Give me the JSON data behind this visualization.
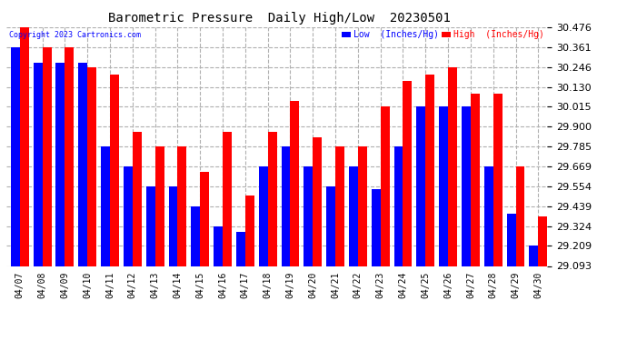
{
  "title": "Barometric Pressure  Daily High/Low  20230501",
  "copyright": "Copyright 2023 Cartronics.com",
  "legend_low": "Low  (Inches/Hg)",
  "legend_high": "High  (Inches/Hg)",
  "dates": [
    "04/07",
    "04/08",
    "04/09",
    "04/10",
    "04/11",
    "04/12",
    "04/13",
    "04/14",
    "04/15",
    "04/16",
    "04/17",
    "04/18",
    "04/19",
    "04/20",
    "04/21",
    "04/22",
    "04/23",
    "04/24",
    "04/25",
    "04/26",
    "04/27",
    "04/28",
    "04/29",
    "04/30"
  ],
  "high": [
    30.476,
    30.361,
    30.361,
    30.246,
    30.2,
    29.87,
    29.785,
    29.785,
    29.64,
    29.87,
    29.5,
    29.87,
    30.05,
    29.84,
    29.785,
    29.785,
    30.015,
    30.165,
    30.2,
    30.246,
    30.09,
    30.09,
    29.67,
    29.38
  ],
  "low": [
    30.361,
    30.27,
    30.27,
    30.27,
    29.785,
    29.669,
    29.554,
    29.554,
    29.439,
    29.324,
    29.29,
    29.669,
    29.785,
    29.669,
    29.554,
    29.669,
    29.54,
    29.785,
    30.015,
    30.015,
    30.015,
    29.669,
    29.395,
    29.209
  ],
  "ylim_min": 29.093,
  "ylim_max": 30.476,
  "yticks": [
    29.093,
    29.209,
    29.324,
    29.439,
    29.554,
    29.669,
    29.785,
    29.9,
    30.015,
    30.13,
    30.246,
    30.361,
    30.476
  ],
  "color_high": "#ff0000",
  "color_low": "#0000ff",
  "bg_color": "#ffffff",
  "grid_color": "#b0b0b0",
  "title_color": "#000000",
  "bar_width": 0.4,
  "figwidth": 6.9,
  "figheight": 3.75,
  "dpi": 100
}
